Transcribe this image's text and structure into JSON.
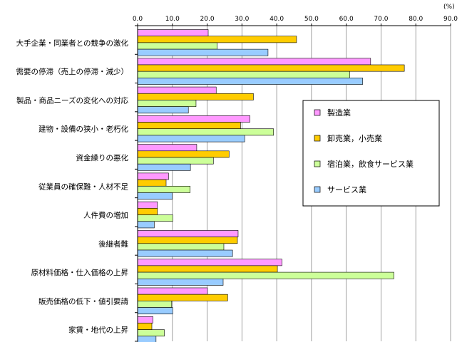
{
  "chart_data": {
    "type": "bar",
    "orientation": "horizontal",
    "unit_label": "(%)",
    "xlim": [
      0,
      90
    ],
    "x_ticks": [
      "0.0",
      "10.0",
      "20.0",
      "30.0",
      "40.0",
      "50.0",
      "60.0",
      "70.0",
      "80.0",
      "90.0"
    ],
    "tick_step": 10,
    "grid": "vertical",
    "legend_position": "right",
    "categories": [
      "大手企業・同業者との競争の激化",
      "需要の停滞（売上の停滞・減少）",
      "製品・商品ニーズの変化への対応",
      "建物・設備の狭小・老朽化",
      "資金繰りの悪化",
      "従業員の確保難・人材不足",
      "人件費の増加",
      "後継者難",
      "原材料価格・仕入価格の上昇",
      "販売価格の低下・値引要請",
      "家賃・地代の上昇"
    ],
    "series": [
      {
        "name": "製造業",
        "color": "#ff99ff",
        "values": [
          20.3,
          67.0,
          22.6,
          32.3,
          17.0,
          8.9,
          5.7,
          28.9,
          41.5,
          20.1,
          4.4
        ]
      },
      {
        "name": "卸売業，小売業",
        "color": "#ffcc00",
        "values": [
          45.7,
          76.7,
          33.3,
          29.6,
          26.3,
          8.2,
          5.7,
          28.7,
          40.2,
          25.9,
          4.1
        ]
      },
      {
        "name": "宿泊業，飲食サービス業",
        "color": "#ccff99",
        "values": [
          22.9,
          61.0,
          16.8,
          39.1,
          21.8,
          15.1,
          10.1,
          24.8,
          73.7,
          9.8,
          7.7
        ]
      },
      {
        "name": "サービス業",
        "color": "#99ccff",
        "values": [
          37.5,
          64.7,
          14.6,
          30.8,
          15.2,
          10.0,
          4.8,
          27.3,
          24.6,
          10.1,
          5.3
        ]
      }
    ]
  }
}
